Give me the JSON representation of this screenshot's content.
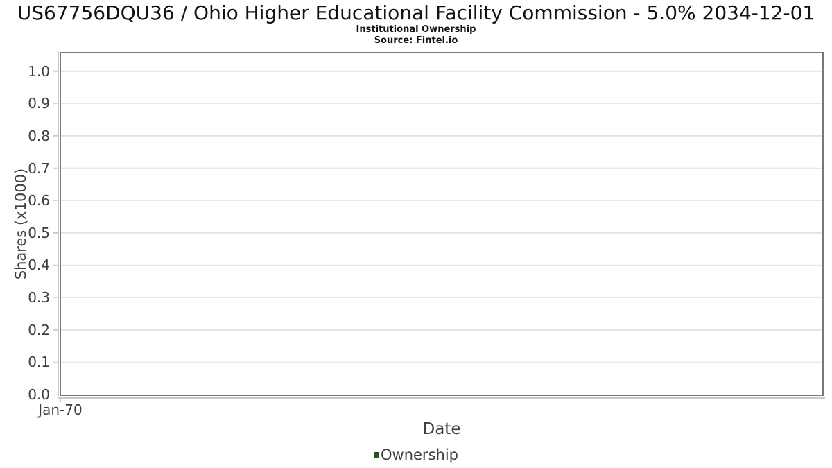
{
  "chart_data": {
    "type": "line",
    "title": "US67756DQU36 / Ohio Higher Educational Facility Commission - 5.0% 2034-12-01",
    "subtitle": "Institutional Ownership",
    "source": "Source: Fintel.io",
    "xlabel": "Date",
    "ylabel": "Shares (x1000)",
    "series": [
      {
        "name": "Ownership",
        "color": "#235229",
        "x": [],
        "values": []
      }
    ],
    "xtick_labels": [
      "Jan-70"
    ],
    "ytick_labels": [
      "0.0",
      "0.1",
      "0.2",
      "0.3",
      "0.4",
      "0.5",
      "0.6",
      "0.7",
      "0.8",
      "0.9",
      "1.0"
    ],
    "ylim": [
      0,
      1.055
    ],
    "xlim_note": "empty chart - no data points plotted",
    "grid": "horizontal-only",
    "legend_position": "bottom-center"
  },
  "colors": {
    "legend_marker": "#235229",
    "grid_line": "#e1e1e1",
    "plot_border": "#787878",
    "axis_tick": "#c9c9c9",
    "label_text": "#3e3e3e",
    "title_text": "#121212"
  }
}
